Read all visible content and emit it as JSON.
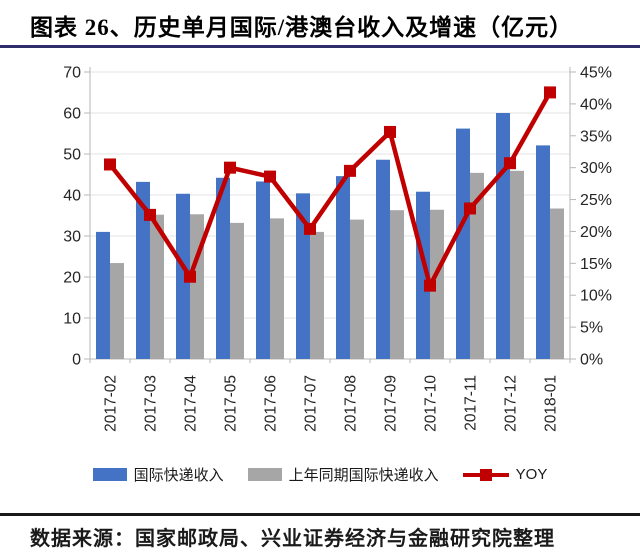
{
  "header": {
    "title": "图表 26、历史单月国际/港澳台收入及增速（亿元）"
  },
  "footer": {
    "source": "数据来源：国家邮政局、兴业证券经济与金融研究院整理"
  },
  "colors": {
    "revenue_bar": "#4472C4",
    "prior_year_bar": "#A6A6A6",
    "yoy_line": "#C00000",
    "title_rule": "#2E2D69",
    "footer_rule": "#1A1A1A",
    "grid_line": "#E3E3E3",
    "axis_line": "#B7B7B7",
    "tick_label": "#262626"
  },
  "chart_data": {
    "type": "bar",
    "subtype": "grouped-bars-with-line",
    "categories": [
      "2017-02",
      "2017-03",
      "2017-04",
      "2017-05",
      "2017-06",
      "2017-07",
      "2017-08",
      "2017-09",
      "2017-10",
      "2017-11",
      "2017-12",
      "2018-01"
    ],
    "series": [
      {
        "name": "国际快递收入",
        "type": "bar",
        "axis": "left",
        "color_key": "revenue_bar",
        "values": [
          31,
          43.2,
          40.3,
          44.2,
          43.3,
          40.4,
          44.6,
          48.6,
          40.8,
          56.2,
          60,
          52.1
        ]
      },
      {
        "name": "上年同期国际快递收入",
        "type": "bar",
        "axis": "left",
        "color_key": "prior_year_bar",
        "values": [
          23.4,
          35.2,
          35.3,
          33.2,
          34.3,
          31,
          34,
          36.3,
          36.4,
          45.4,
          45.9,
          36.7
        ]
      },
      {
        "name": "YOY",
        "type": "line",
        "axis": "right",
        "color_key": "yoy_line",
        "values": [
          30.5,
          22.6,
          12.9,
          30,
          28.6,
          20.4,
          29.5,
          35.6,
          11.5,
          23.6,
          30.7,
          41.8
        ]
      }
    ],
    "left_axis": {
      "min": 0,
      "max": 70,
      "step": 10,
      "suffix": ""
    },
    "right_axis": {
      "min": 0,
      "max": 45,
      "step": 5,
      "suffix": "%"
    },
    "grid": true,
    "legend_position": "bottom",
    "title": "图表 26、历史单月国际/港澳台收入及增速（亿元）"
  }
}
